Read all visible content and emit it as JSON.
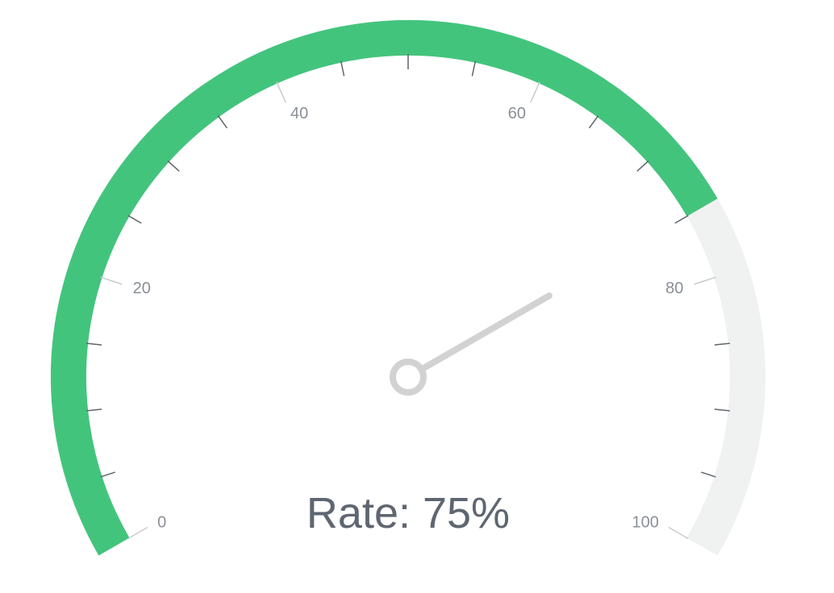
{
  "chart_data": {
    "type": "gauge",
    "min": 0,
    "max": 100,
    "value": 75,
    "major_ticks": [
      0,
      20,
      40,
      60,
      80,
      100
    ],
    "major_tick_labels": [
      "0",
      "20",
      "40",
      "60",
      "80",
      "100"
    ],
    "minor_ticks_per_major": 3,
    "label": "Rate: 75%",
    "colors": {
      "fill": "#43c47d",
      "track": "#f0f1f1",
      "needle": "#d2d2d2",
      "major_tick": "#c8cbcf",
      "minor_tick": "#5e646c",
      "label_text": "#8a8f97",
      "readout_text": "#5f6671"
    }
  }
}
